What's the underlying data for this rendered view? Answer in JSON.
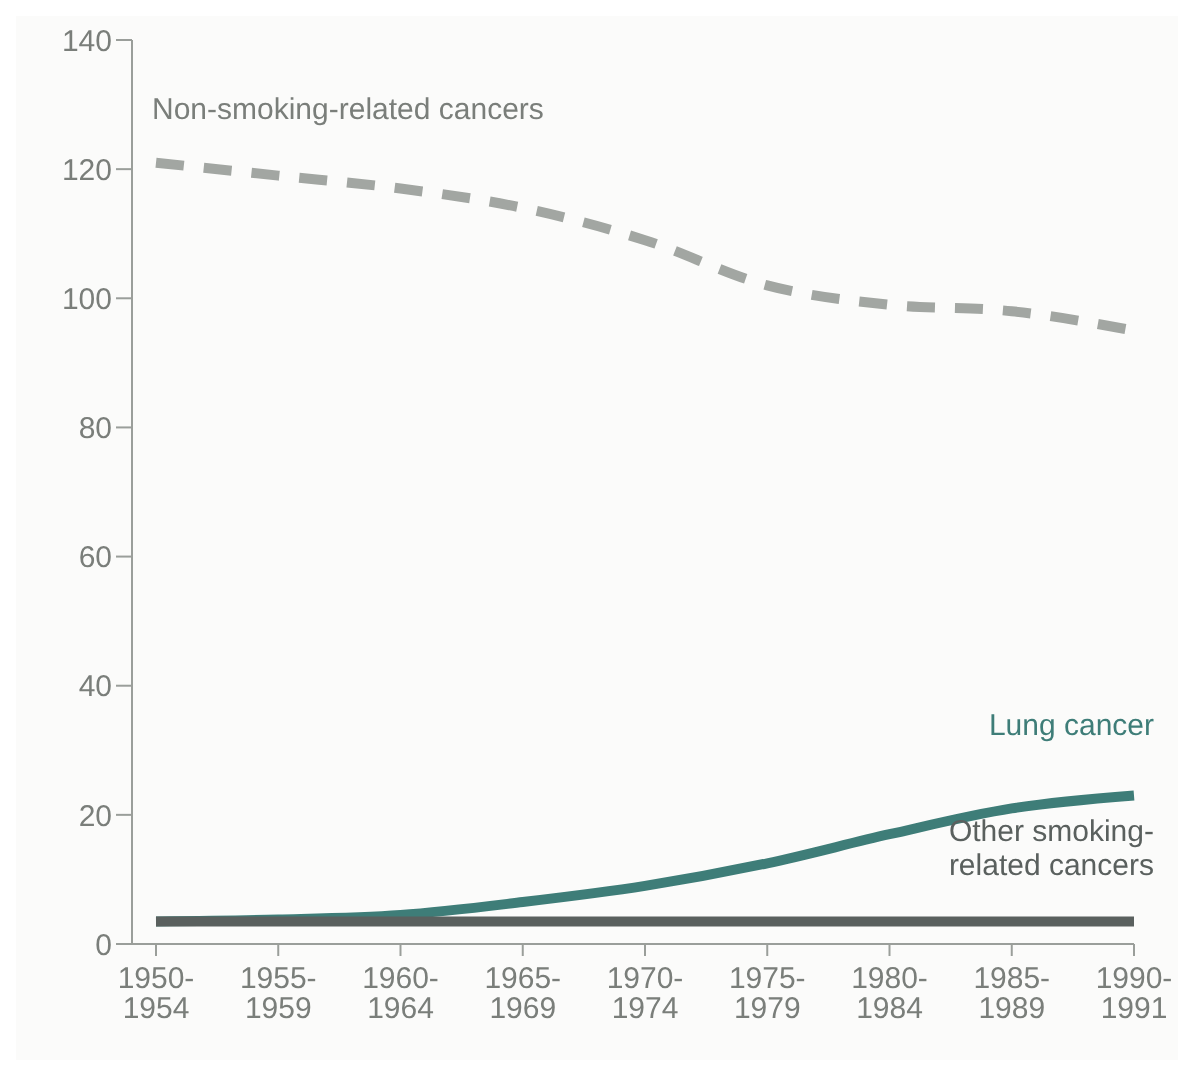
{
  "chart_data": {
    "type": "line",
    "categories": [
      "1950-\n1954",
      "1955-\n1959",
      "1960-\n1964",
      "1965-\n1969",
      "1970-\n1974",
      "1975-\n1979",
      "1980-\n1984",
      "1985-\n1989",
      "1990-\n1991"
    ],
    "series": [
      {
        "name": "Non-smoking-related cancers",
        "color": "#a2a6a2",
        "line_style": "dashed",
        "values": [
          121,
          119,
          117,
          114,
          109,
          102,
          99,
          98,
          95
        ]
      },
      {
        "name": "Lung cancer",
        "color": "#3e7d78",
        "line_style": "solid",
        "values": [
          3.5,
          3.8,
          4.5,
          6.5,
          9,
          12.5,
          17,
          21,
          23
        ]
      },
      {
        "name": "Other smoking-related cancers",
        "color": "#5a605e",
        "line_style": "solid",
        "values": [
          3.5,
          3.5,
          3.5,
          3.5,
          3.5,
          3.5,
          3.5,
          3.5,
          3.5
        ]
      }
    ],
    "ylim": [
      0,
      140
    ],
    "yticks": [
      0,
      20,
      40,
      60,
      80,
      100,
      120,
      140
    ],
    "grid": false,
    "legend": false,
    "marker": "none"
  }
}
